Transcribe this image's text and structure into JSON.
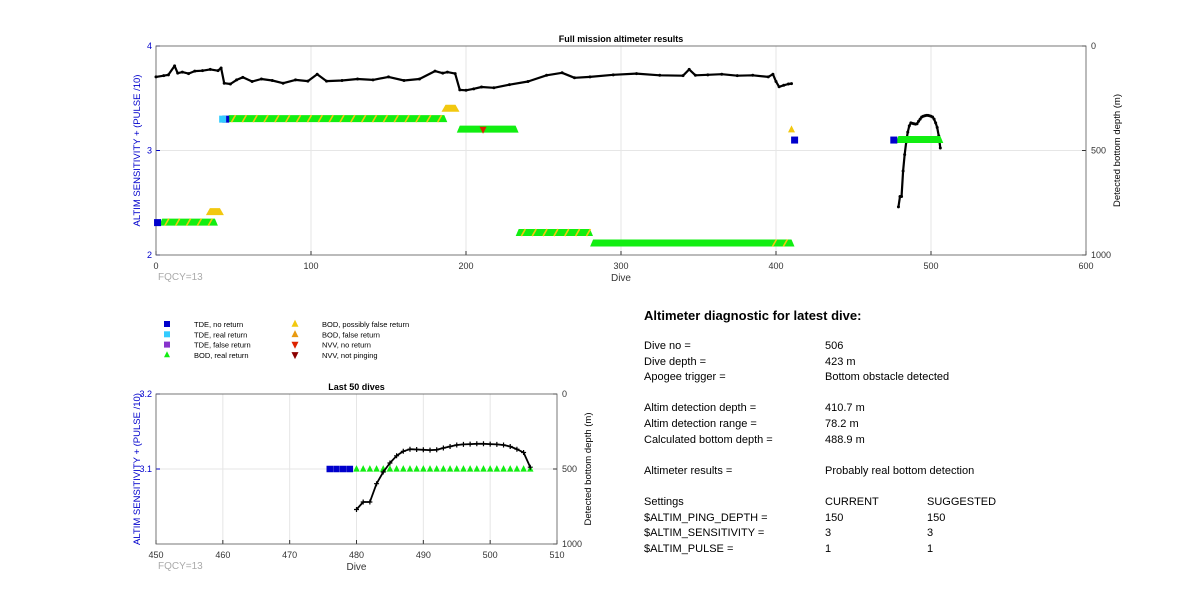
{
  "chart_data": [
    {
      "type": "scatter",
      "title": "Full mission altimeter results",
      "xlabel": "Dive",
      "ylabel": "ALTIM SENSITIVITY + (PULSE /10)",
      "y2label": "Detected bottom depth (m)",
      "xlim": [
        0,
        600
      ],
      "ylim": [
        2,
        4
      ],
      "y2lim": [
        1000,
        0
      ],
      "x_ticks": [
        "0",
        "100",
        "200",
        "300",
        "400",
        "500",
        "600"
      ],
      "y_ticks": [
        "2",
        "3",
        "4"
      ],
      "y2_ticks": [
        "0",
        "500",
        "1000"
      ],
      "grid": true,
      "annotation": "FQCY=13",
      "series": [
        {
          "name": "TDE, no return",
          "color": "#0000cc",
          "marker": "square",
          "points": [
            [
              1,
              2.31
            ],
            [
              45,
              3.3
            ],
            [
              412,
              3.1
            ],
            [
              476,
              3.1
            ]
          ]
        },
        {
          "name": "TDE, real return",
          "color": "#33ccff",
          "marker": "square",
          "points": [
            [
              43,
              3.3
            ]
          ]
        },
        {
          "name": "BOD, real return",
          "color": "#11ee11",
          "marker": "triangle",
          "ranges": [
            [
              4,
              38,
              2.31
            ],
            [
              47,
              186,
              3.3
            ],
            [
              196,
              232,
              3.2
            ],
            [
              234,
              280,
              2.21
            ],
            [
              282,
              410,
              2.11
            ],
            [
              479,
              506,
              3.1
            ]
          ]
        },
        {
          "name": "BOD, possibly false return",
          "color": "#f2c80f",
          "marker": "triangle",
          "points": [
            [
              38,
              2.41
            ],
            [
              190,
              3.4
            ],
            [
              410,
              3.2
            ]
          ],
          "stripes": [
            [
              4,
              38,
              2.31
            ],
            [
              47,
              186,
              3.3
            ],
            [
              234,
              280,
              2.21
            ],
            [
              396,
              410,
              2.11
            ]
          ]
        },
        {
          "name": "NVV, no return",
          "color": "#dd2200",
          "marker": "triangle-down",
          "points": [
            [
              211,
              3.2
            ]
          ]
        },
        {
          "name": "Detected bottom depth",
          "color": "#000000",
          "marker": "line",
          "x": [
            0,
            5,
            8,
            12,
            14,
            17,
            21,
            25,
            30,
            35,
            40,
            42,
            44,
            48,
            52,
            56,
            62,
            68,
            75,
            82,
            90,
            98,
            104,
            110,
            120,
            130,
            140,
            150,
            160,
            170,
            180,
            185,
            188,
            193,
            196,
            200,
            205,
            210,
            218,
            228,
            240,
            252,
            262,
            270,
            280,
            295,
            310,
            325,
            340,
            344,
            348,
            356,
            365,
            375,
            385,
            395,
            398,
            400,
            402,
            405,
            408,
            410
          ],
          "y": [
            148,
            142,
            138,
            95,
            130,
            125,
            132,
            120,
            118,
            112,
            118,
            105,
            178,
            182,
            162,
            150,
            170,
            158,
            165,
            178,
            162,
            168,
            135,
            168,
            165,
            158,
            162,
            148,
            165,
            158,
            120,
            130,
            125,
            132,
            210,
            212,
            205,
            196,
            200,
            185,
            170,
            140,
            128,
            152,
            148,
            138,
            132,
            140,
            142,
            112,
            140,
            138,
            135,
            142,
            140,
            148,
            135,
            170,
            195,
            188,
            182,
            180
          ]
        },
        {
          "name": "Detected bottom depth, dives 479-506",
          "color": "#000000",
          "marker": "line",
          "x": [
            479,
            480,
            481,
            482,
            483,
            484,
            485,
            486,
            487,
            488,
            489,
            490,
            491,
            492,
            493,
            494,
            495,
            496,
            497,
            498,
            499,
            500,
            501,
            502,
            503,
            504,
            505,
            506
          ],
          "y": [
            770,
            720,
            720,
            598,
            520,
            460,
            412,
            382,
            368,
            370,
            372,
            374,
            372,
            360,
            350,
            340,
            336,
            334,
            332,
            332,
            334,
            336,
            340,
            350,
            368,
            390,
            430,
            488
          ]
        }
      ]
    },
    {
      "type": "scatter",
      "title": "Last 50 dives",
      "xlabel": "Dive",
      "ylabel": "ALTIM SENSITIVITY + (PULSE /10)",
      "y2label": "Detected bottom depth (m)",
      "xlim": [
        450,
        510
      ],
      "ylim": [
        3,
        3.2
      ],
      "y2lim": [
        1000,
        0
      ],
      "x_ticks": [
        "450",
        "460",
        "470",
        "480",
        "490",
        "500",
        "510"
      ],
      "y_ticks": [
        "3.1",
        "3.2"
      ],
      "y2_ticks": [
        "0",
        "500",
        "1000"
      ],
      "grid": true,
      "annotation": "FQCY=13",
      "series": [
        {
          "name": "TDE, no return",
          "color": "#0000cc",
          "marker": "square",
          "x": [
            476,
            477,
            478,
            479
          ],
          "y": [
            3.1,
            3.1,
            3.1,
            3.1
          ]
        },
        {
          "name": "BOD, real return",
          "color": "#11ee11",
          "marker": "triangle",
          "x": [
            480,
            481,
            482,
            483,
            484,
            485,
            486,
            487,
            488,
            489,
            490,
            491,
            492,
            493,
            494,
            495,
            496,
            497,
            498,
            499,
            500,
            501,
            502,
            503,
            504,
            505,
            506
          ],
          "y": [
            3.1,
            3.1,
            3.1,
            3.1,
            3.1,
            3.1,
            3.1,
            3.1,
            3.1,
            3.1,
            3.1,
            3.1,
            3.1,
            3.1,
            3.1,
            3.1,
            3.1,
            3.1,
            3.1,
            3.1,
            3.1,
            3.1,
            3.1,
            3.1,
            3.1,
            3.1,
            3.1
          ]
        },
        {
          "name": "Detected bottom depth",
          "color": "#000000",
          "marker": "line",
          "x": [
            480,
            481,
            482,
            483,
            484,
            485,
            486,
            487,
            488,
            489,
            490,
            491,
            492,
            493,
            494,
            495,
            496,
            497,
            498,
            499,
            500,
            501,
            502,
            503,
            504,
            505,
            506
          ],
          "y": [
            770,
            720,
            720,
            598,
            520,
            460,
            412,
            382,
            368,
            370,
            372,
            374,
            372,
            360,
            350,
            340,
            336,
            334,
            332,
            332,
            334,
            336,
            340,
            350,
            368,
            390,
            488
          ]
        }
      ]
    }
  ],
  "legend": {
    "col1": [
      {
        "label": "TDE, no return",
        "color": "#0000cc",
        "marker": "square"
      },
      {
        "label": "TDE, real return",
        "color": "#33ccff",
        "marker": "square"
      },
      {
        "label": "TDE, false return",
        "color": "#8833cc",
        "marker": "square"
      },
      {
        "label": "BOD, real return",
        "color": "#11ee11",
        "marker": "triangle"
      }
    ],
    "col2": [
      {
        "label": "BOD, possibly false return",
        "color": "#f2c80f",
        "marker": "triangle"
      },
      {
        "label": "BOD, false return",
        "color": "#e89a10",
        "marker": "triangle"
      },
      {
        "label": "NVV, no return",
        "color": "#dd2200",
        "marker": "triangle-down"
      },
      {
        "label": "NVV, not pinging",
        "color": "#8b0000",
        "marker": "triangle-down"
      }
    ]
  },
  "diagnostic": {
    "title": "Altimeter diagnostic for latest dive:",
    "dive_no_label": "Dive no =",
    "dive_no": "506",
    "dive_depth_label": "Dive depth =",
    "dive_depth": "423 m",
    "apogee_label": "Apogee trigger =",
    "apogee": "Bottom obstacle detected",
    "altim_depth_label": "Altim detection depth =",
    "altim_depth": "410.7 m",
    "altim_range_label": "Altim detection range =",
    "altim_range": "78.2 m",
    "calc_depth_label": "Calculated bottom depth =",
    "calc_depth": "488.9 m",
    "results_label": "Altimeter results =",
    "results": "Probably real bottom detection",
    "settings_label": "Settings",
    "current_label": "CURRENT",
    "suggested_label": "SUGGESTED",
    "ping_depth_label": "$ALTIM_PING_DEPTH =",
    "ping_depth_current": "150",
    "ping_depth_suggested": "150",
    "sensitivity_label": "$ALTIM_SENSITIVITY =",
    "sensitivity_current": "3",
    "sensitivity_suggested": "3",
    "pulse_label": "$ALTIM_PULSE =",
    "pulse_current": "1",
    "pulse_suggested": "1"
  }
}
